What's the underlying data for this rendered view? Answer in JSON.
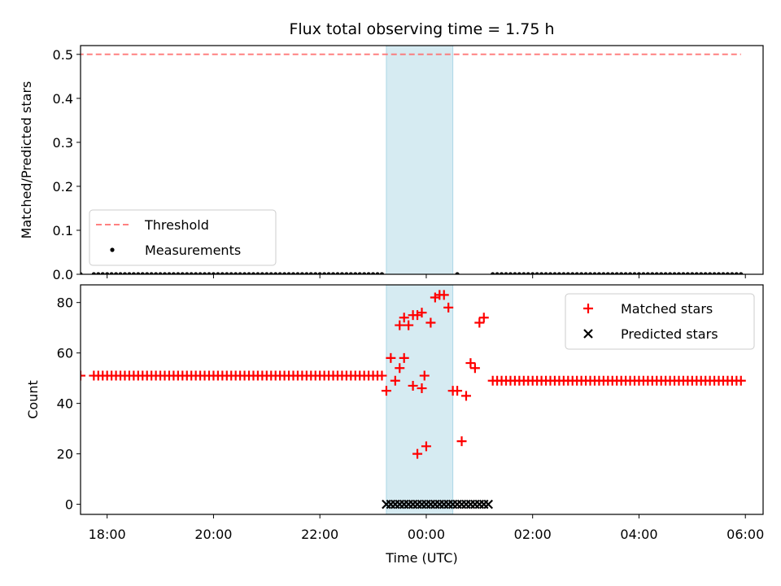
{
  "chart_data": [
    {
      "type": "scatter",
      "title": "Flux total observing time = 1.75 h",
      "xlabel": "",
      "ylabel": "Matched/Predicted stars",
      "xlim": [
        "17:30",
        "06:20"
      ],
      "ylim": [
        0,
        0.52
      ],
      "yticks": [
        0.0,
        0.1,
        0.2,
        0.3,
        0.4,
        0.5
      ],
      "ytick_labels": [
        "0.0",
        "0.1",
        "0.2",
        "0.3",
        "0.4",
        "0.5"
      ],
      "shaded_region": {
        "start": "23:15",
        "end": "00:30",
        "color": "#add8e6"
      },
      "legend_position": "lower-left",
      "series": [
        {
          "name": "Threshold",
          "kind": "line",
          "style": "dashed",
          "color": "#ff6b6b",
          "x": [
            "17:27",
            "05:55"
          ],
          "y": [
            0.5,
            0.5
          ]
        },
        {
          "name": "Measurements",
          "kind": "scatter",
          "marker": "dot",
          "color": "#000000",
          "ranges": [
            {
              "from": "17:25",
              "to": "17:30",
              "count": 2,
              "y": 0.0
            },
            {
              "from": "17:45",
              "to": "23:10",
              "count": 66,
              "y": 0.0
            },
            {
              "from": "00:35",
              "to": "00:35",
              "count": 1,
              "y": 0.0
            },
            {
              "from": "01:15",
              "to": "05:55",
              "count": 57,
              "y": 0.0
            }
          ]
        }
      ]
    },
    {
      "type": "scatter",
      "title": "",
      "xlabel": "Time (UTC)",
      "ylabel": "Count",
      "xlim": [
        "17:30",
        "06:20"
      ],
      "ylim": [
        -4,
        87
      ],
      "yticks": [
        0,
        20,
        40,
        60,
        80
      ],
      "ytick_labels": [
        "0",
        "20",
        "40",
        "60",
        "80"
      ],
      "xticks": [
        "18:00",
        "20:00",
        "22:00",
        "00:00",
        "02:00",
        "04:00",
        "06:00"
      ],
      "shaded_region": {
        "start": "23:15",
        "end": "00:30",
        "color": "#add8e6"
      },
      "legend_position": "upper-right",
      "series": [
        {
          "name": "Matched stars",
          "kind": "scatter",
          "marker": "plus",
          "color": "#ff0000",
          "ranges": [
            {
              "from": "17:25",
              "to": "17:30",
              "count": 2,
              "y": 51
            },
            {
              "from": "17:45",
              "to": "23:10",
              "count": 66,
              "y": 51
            },
            {
              "from": "01:15",
              "to": "05:55",
              "count": 57,
              "y": 49
            }
          ],
          "points": [
            {
              "x": "23:15",
              "y": 45
            },
            {
              "x": "23:20",
              "y": 58
            },
            {
              "x": "23:25",
              "y": 49
            },
            {
              "x": "23:30",
              "y": 71
            },
            {
              "x": "23:35",
              "y": 74
            },
            {
              "x": "23:40",
              "y": 71
            },
            {
              "x": "23:45",
              "y": 75
            },
            {
              "x": "23:50",
              "y": 75
            },
            {
              "x": "23:55",
              "y": 76
            },
            {
              "x": "23:30",
              "y": 54
            },
            {
              "x": "23:35",
              "y": 58
            },
            {
              "x": "23:45",
              "y": 47
            },
            {
              "x": "23:50",
              "y": 20
            },
            {
              "x": "23:55",
              "y": 46
            },
            {
              "x": "23:58",
              "y": 51
            },
            {
              "x": "00:00",
              "y": 23
            },
            {
              "x": "00:05",
              "y": 72
            },
            {
              "x": "00:10",
              "y": 82
            },
            {
              "x": "00:15",
              "y": 83
            },
            {
              "x": "00:20",
              "y": 83
            },
            {
              "x": "00:25",
              "y": 78
            },
            {
              "x": "00:30",
              "y": 45
            },
            {
              "x": "00:35",
              "y": 45
            },
            {
              "x": "00:40",
              "y": 25
            },
            {
              "x": "00:45",
              "y": 43
            },
            {
              "x": "00:50",
              "y": 56
            },
            {
              "x": "00:55",
              "y": 54
            },
            {
              "x": "01:00",
              "y": 72
            },
            {
              "x": "01:05",
              "y": 74
            }
          ]
        },
        {
          "name": "Predicted stars",
          "kind": "scatter",
          "marker": "x",
          "color": "#000000",
          "ranges": [
            {
              "from": "23:15",
              "to": "01:10",
              "count": 24,
              "y": 0
            }
          ]
        }
      ]
    }
  ]
}
